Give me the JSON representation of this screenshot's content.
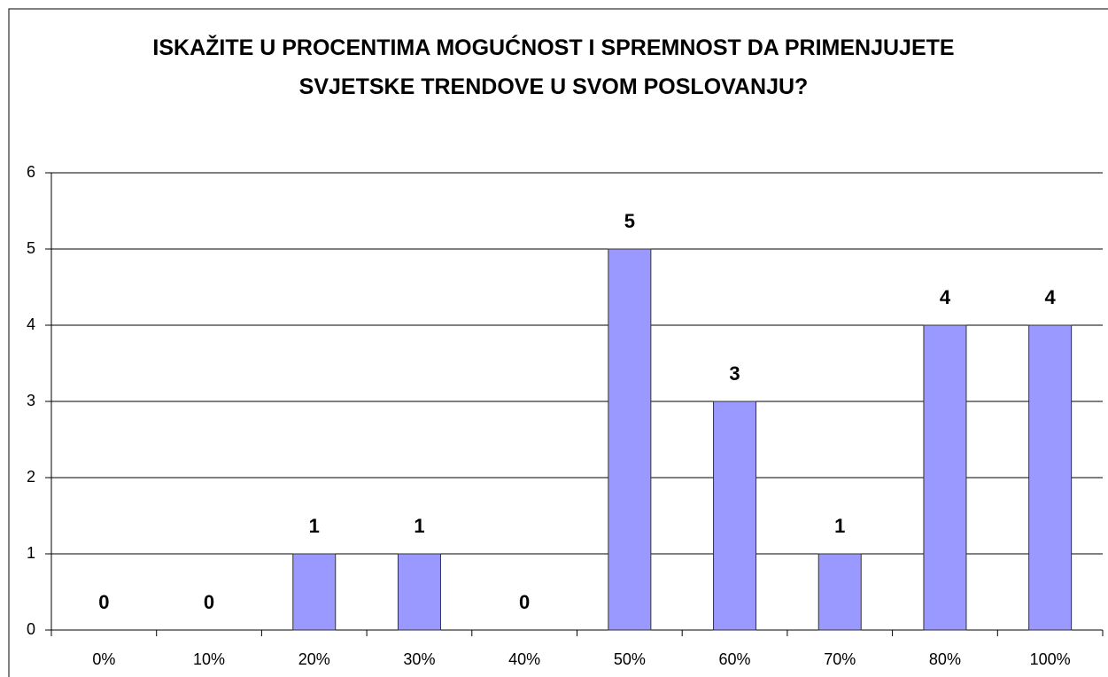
{
  "chart_data": {
    "type": "bar",
    "title": "ISKAŽITE U PROCENTIMA MOGUĆNOST I SPREMNOST DA PRIMENJUJETE SVJETSKE TRENDOVE U SVOM POSLOVANJU?",
    "categories": [
      "0%",
      "10%",
      "20%",
      "30%",
      "40%",
      "50%",
      "60%",
      "70%",
      "80%",
      "100%"
    ],
    "values": [
      0,
      0,
      1,
      1,
      0,
      5,
      3,
      1,
      4,
      4
    ],
    "color": "#9999ff",
    "ylim": [
      0,
      6
    ],
    "yticks": [
      0,
      1,
      2,
      3,
      4,
      5,
      6
    ],
    "grid": true
  }
}
